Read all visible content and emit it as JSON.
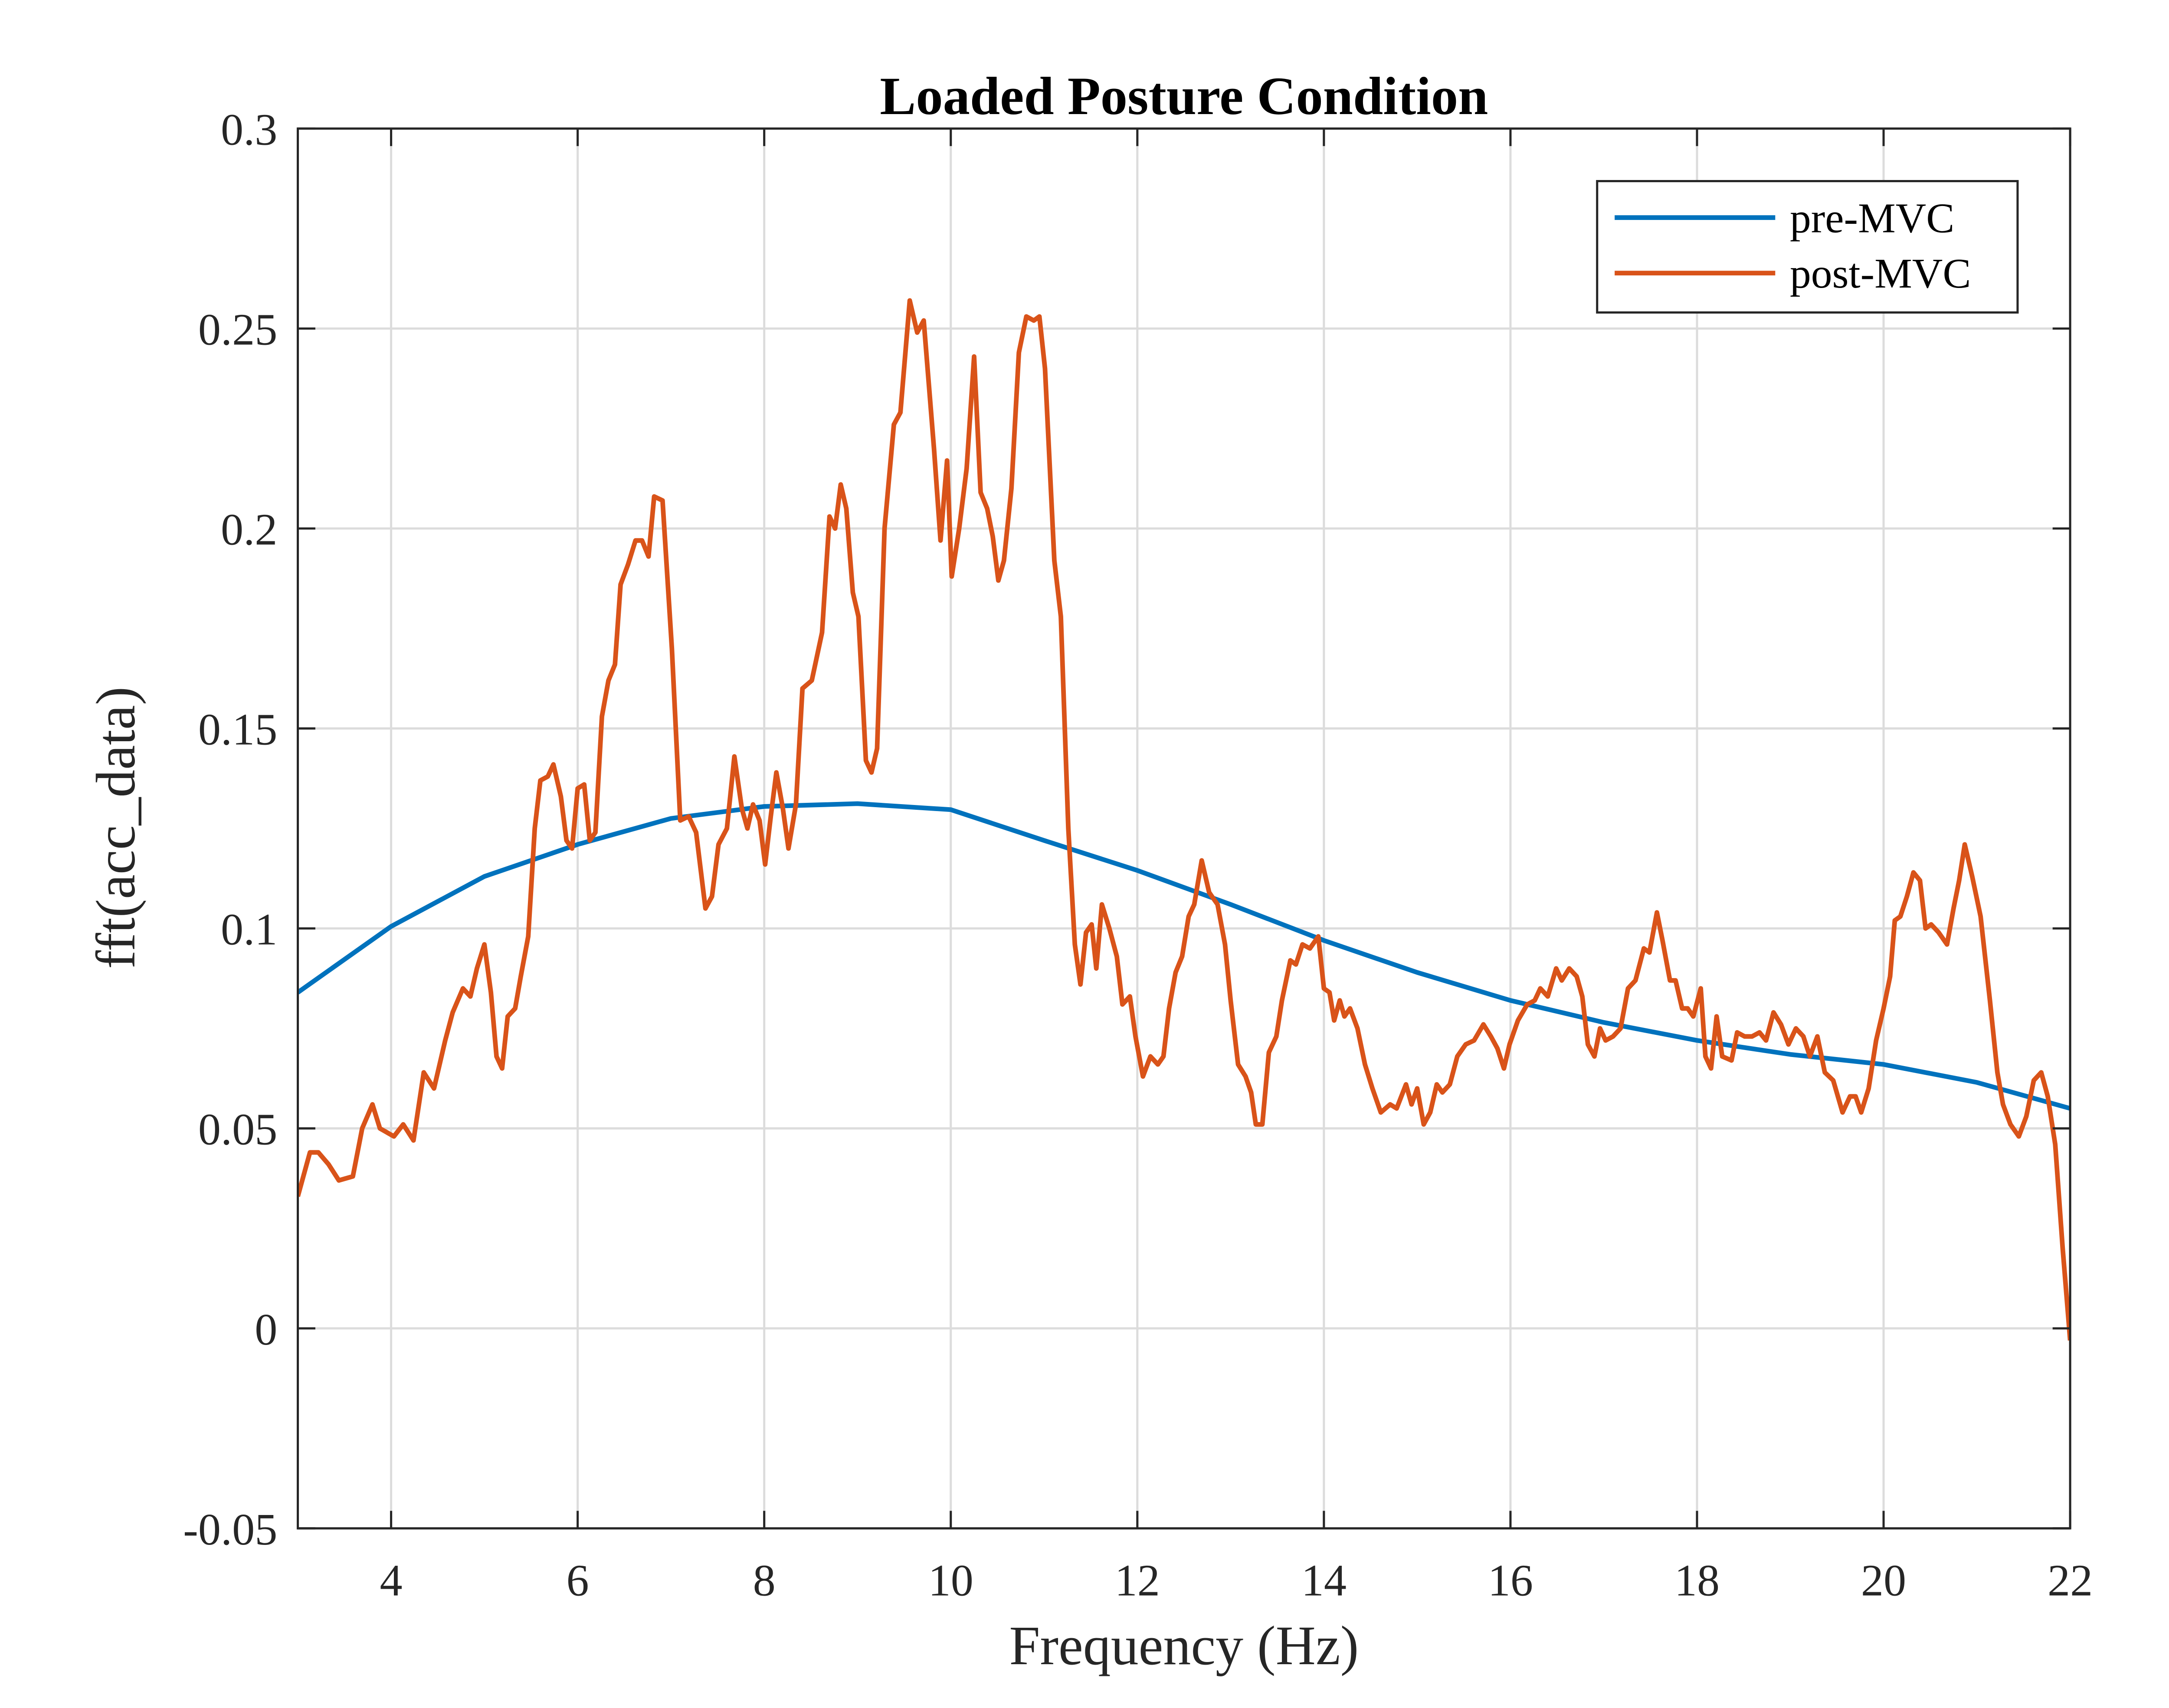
{
  "chart_data": {
    "type": "line",
    "title": "Loaded Posture Condition",
    "x_label": "Frequency (Hz)",
    "y_label": "fft(acc_data)",
    "xlim": [
      3,
      22
    ],
    "ylim": [
      -0.05,
      0.3
    ],
    "xticks": [
      4,
      6,
      8,
      10,
      12,
      14,
      16,
      18,
      20,
      22
    ],
    "yticks": [
      -0.05,
      0,
      0.05,
      0.1,
      0.15,
      0.2,
      0.25,
      0.3
    ],
    "grid": true,
    "legend": "northeast",
    "series": [
      {
        "name": "pre-MVC",
        "color": "#0072bd",
        "x": [
          3,
          4,
          5,
          6,
          7,
          8,
          9,
          10,
          11,
          12,
          13,
          14,
          15,
          16,
          17,
          18,
          19,
          20,
          21,
          22
        ],
        "values": [
          0.084,
          0.1005,
          0.113,
          0.121,
          0.1275,
          0.1305,
          0.1312,
          0.1297,
          0.122,
          0.1145,
          0.106,
          0.097,
          0.089,
          0.082,
          0.0765,
          0.072,
          0.0685,
          0.066,
          0.0615,
          0.055
        ]
      },
      {
        "name": "post-MVC",
        "color": "#d95319",
        "x": [
          3.0,
          3.13,
          3.22,
          3.33,
          3.44,
          3.59,
          3.69,
          3.8,
          3.88,
          4.03,
          4.13,
          4.24,
          4.35,
          4.46,
          4.58,
          4.66,
          4.77,
          4.85,
          4.92,
          5.0,
          5.07,
          5.13,
          5.19,
          5.25,
          5.33,
          5.39,
          5.47,
          5.54,
          5.6,
          5.68,
          5.74,
          5.82,
          5.88,
          5.94,
          6.0,
          6.07,
          6.13,
          6.19,
          6.26,
          6.33,
          6.4,
          6.46,
          6.54,
          6.62,
          6.69,
          6.76,
          6.82,
          6.91,
          7.01,
          7.1,
          7.19,
          7.27,
          7.37,
          7.44,
          7.51,
          7.6,
          7.68,
          7.76,
          7.82,
          7.88,
          7.95,
          8.01,
          8.07,
          8.13,
          8.2,
          8.26,
          8.34,
          8.41,
          8.51,
          8.62,
          8.7,
          8.76,
          8.82,
          8.88,
          8.95,
          9.01,
          9.09,
          9.15,
          9.21,
          9.29,
          9.39,
          9.46,
          9.56,
          9.64,
          9.71,
          9.82,
          9.89,
          9.96,
          10.01,
          10.09,
          10.17,
          10.25,
          10.32,
          10.39,
          10.45,
          10.51,
          10.57,
          10.65,
          10.73,
          10.81,
          10.89,
          10.95,
          11.01,
          11.11,
          11.18,
          11.26,
          11.33,
          11.39,
          11.45,
          11.51,
          11.56,
          11.62,
          11.7,
          11.78,
          11.84,
          11.92,
          11.98,
          12.06,
          12.14,
          12.22,
          12.28,
          12.34,
          12.41,
          12.48,
          12.55,
          12.61,
          12.69,
          12.77,
          12.86,
          12.94,
          13.0,
          13.08,
          13.16,
          13.22,
          13.27,
          13.34,
          13.41,
          13.49,
          13.55,
          13.64,
          13.7,
          13.77,
          13.85,
          13.94,
          14.0,
          14.06,
          14.11,
          14.17,
          14.22,
          14.28,
          14.36,
          14.44,
          14.52,
          14.61,
          14.71,
          14.78,
          14.88,
          14.94,
          15.0,
          15.07,
          15.14,
          15.21,
          15.27,
          15.35,
          15.43,
          15.52,
          15.61,
          15.71,
          15.79,
          15.86,
          15.93,
          15.99,
          16.08,
          16.18,
          16.26,
          16.32,
          16.4,
          16.49,
          16.55,
          16.63,
          16.71,
          16.77,
          16.83,
          16.9,
          16.96,
          17.02,
          17.1,
          17.18,
          17.26,
          17.34,
          17.43,
          17.49,
          17.57,
          17.63,
          17.71,
          17.77,
          17.84,
          17.9,
          17.96,
          18.04,
          18.09,
          18.15,
          18.21,
          18.27,
          18.37,
          18.43,
          18.51,
          18.59,
          18.67,
          18.74,
          18.82,
          18.9,
          18.98,
          19.06,
          19.14,
          19.21,
          19.29,
          19.37,
          19.46,
          19.56,
          19.64,
          19.7,
          19.76,
          19.84,
          19.92,
          20.0,
          20.07,
          20.12,
          20.18,
          20.25,
          20.32,
          20.39,
          20.45,
          20.51,
          20.59,
          20.68,
          20.75,
          20.81,
          20.87,
          20.95,
          21.04,
          21.14,
          21.22,
          21.28,
          21.36,
          21.45,
          21.53,
          21.61,
          21.69,
          21.76,
          21.84,
          21.92,
          22.0
        ],
        "values": [
          0.033,
          0.044,
          0.044,
          0.041,
          0.037,
          0.038,
          0.05,
          0.056,
          0.05,
          0.048,
          0.051,
          0.047,
          0.064,
          0.06,
          0.072,
          0.079,
          0.085,
          0.083,
          0.09,
          0.096,
          0.084,
          0.068,
          0.065,
          0.078,
          0.08,
          0.088,
          0.098,
          0.125,
          0.137,
          0.138,
          0.141,
          0.133,
          0.122,
          0.12,
          0.135,
          0.136,
          0.122,
          0.124,
          0.153,
          0.162,
          0.166,
          0.186,
          0.191,
          0.197,
          0.197,
          0.193,
          0.208,
          0.207,
          0.17,
          0.127,
          0.128,
          0.124,
          0.105,
          0.108,
          0.121,
          0.125,
          0.143,
          0.13,
          0.125,
          0.131,
          0.127,
          0.116,
          0.128,
          0.139,
          0.13,
          0.12,
          0.131,
          0.16,
          0.162,
          0.174,
          0.203,
          0.2,
          0.211,
          0.205,
          0.184,
          0.178,
          0.142,
          0.139,
          0.145,
          0.2,
          0.226,
          0.229,
          0.257,
          0.249,
          0.252,
          0.22,
          0.197,
          0.217,
          0.188,
          0.2,
          0.215,
          0.243,
          0.209,
          0.205,
          0.198,
          0.187,
          0.192,
          0.21,
          0.244,
          0.253,
          0.252,
          0.253,
          0.24,
          0.192,
          0.178,
          0.125,
          0.096,
          0.086,
          0.099,
          0.101,
          0.09,
          0.106,
          0.1,
          0.093,
          0.081,
          0.083,
          0.073,
          0.063,
          0.068,
          0.066,
          0.068,
          0.08,
          0.089,
          0.093,
          0.103,
          0.106,
          0.117,
          0.109,
          0.106,
          0.096,
          0.082,
          0.066,
          0.063,
          0.059,
          0.051,
          0.051,
          0.069,
          0.073,
          0.082,
          0.092,
          0.091,
          0.096,
          0.095,
          0.098,
          0.085,
          0.084,
          0.077,
          0.082,
          0.078,
          0.08,
          0.075,
          0.066,
          0.06,
          0.054,
          0.056,
          0.055,
          0.061,
          0.056,
          0.06,
          0.051,
          0.054,
          0.061,
          0.059,
          0.061,
          0.068,
          0.071,
          0.072,
          0.076,
          0.073,
          0.07,
          0.065,
          0.071,
          0.077,
          0.081,
          0.082,
          0.085,
          0.083,
          0.09,
          0.087,
          0.09,
          0.088,
          0.083,
          0.071,
          0.068,
          0.075,
          0.072,
          0.073,
          0.075,
          0.085,
          0.087,
          0.095,
          0.094,
          0.104,
          0.097,
          0.087,
          0.087,
          0.08,
          0.08,
          0.078,
          0.085,
          0.068,
          0.065,
          0.078,
          0.068,
          0.067,
          0.074,
          0.073,
          0.073,
          0.074,
          0.072,
          0.079,
          0.076,
          0.071,
          0.075,
          0.073,
          0.068,
          0.073,
          0.064,
          0.062,
          0.054,
          0.058,
          0.058,
          0.054,
          0.06,
          0.072,
          0.08,
          0.088,
          0.102,
          0.103,
          0.108,
          0.114,
          0.112,
          0.1,
          0.101,
          0.099,
          0.096,
          0.105,
          0.112,
          0.121,
          0.113,
          0.103,
          0.082,
          0.064,
          0.056,
          0.051,
          0.048,
          0.053,
          0.062,
          0.064,
          0.058,
          0.046,
          0.02,
          -0.003
        ]
      }
    ]
  }
}
